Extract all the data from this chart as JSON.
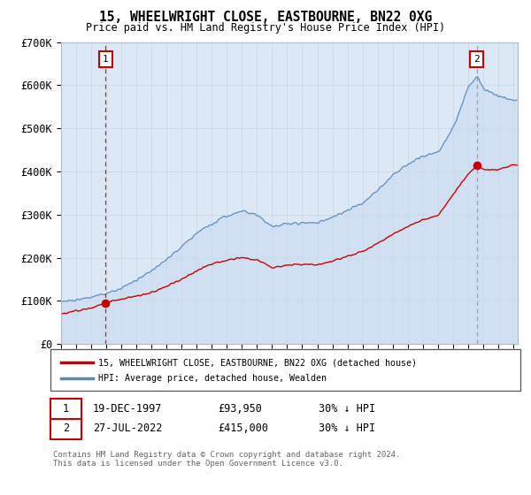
{
  "title": "15, WHEELWRIGHT CLOSE, EASTBOURNE, BN22 0XG",
  "subtitle": "Price paid vs. HM Land Registry's House Price Index (HPI)",
  "ylim": [
    0,
    700000
  ],
  "yticks": [
    0,
    100000,
    200000,
    300000,
    400000,
    500000,
    600000,
    700000
  ],
  "ytick_labels": [
    "£0",
    "£100K",
    "£200K",
    "£300K",
    "£400K",
    "£500K",
    "£600K",
    "£700K"
  ],
  "xlim_start": 1995.0,
  "xlim_end": 2025.3,
  "purchase1_date": 1997.96,
  "purchase1_price": 93950,
  "purchase2_date": 2022.57,
  "purchase2_price": 415000,
  "legend_line1": "15, WHEELWRIGHT CLOSE, EASTBOURNE, BN22 0XG (detached house)",
  "legend_line2": "HPI: Average price, detached house, Wealden",
  "footer": "Contains HM Land Registry data © Crown copyright and database right 2024.\nThis data is licensed under the Open Government Licence v3.0.",
  "price_line_color": "#cc0000",
  "hpi_line_color": "#5588bb",
  "hpi_fill_color": "#c8dcf0",
  "vline1_color": "#cc0000",
  "vline2_color": "#8899bb",
  "dot_color": "#cc0000",
  "marker_box_color": "#cc0000",
  "grid_color": "#c8d4e0",
  "plot_bg": "#dce8f5",
  "hpi_breakpoints": [
    1995,
    1996,
    1997,
    1998,
    1999,
    2000,
    2001,
    2002,
    2003,
    2004,
    2005,
    2006,
    2007,
    2008,
    2009,
    2010,
    2011,
    2012,
    2013,
    2014,
    2015,
    2016,
    2017,
    2018,
    2019,
    2020,
    2021,
    2022,
    2022.6,
    2023,
    2024,
    2025
  ],
  "hpi_values": [
    98000,
    103000,
    108000,
    118000,
    130000,
    148000,
    168000,
    195000,
    225000,
    255000,
    278000,
    295000,
    305000,
    295000,
    268000,
    275000,
    278000,
    278000,
    290000,
    308000,
    325000,
    355000,
    390000,
    415000,
    435000,
    445000,
    500000,
    595000,
    620000,
    590000,
    572000,
    565000
  ],
  "prop_breakpoints": [
    1995,
    1997,
    1997.96,
    1999,
    2001,
    2003,
    2004,
    2005,
    2006,
    2007,
    2008,
    2009,
    2010,
    2011,
    2012,
    2013,
    2014,
    2015,
    2016,
    2017,
    2018,
    2019,
    2020,
    2021,
    2022,
    2022.57,
    2023,
    2024,
    2025
  ],
  "prop_values": [
    70000,
    82000,
    93950,
    104000,
    120000,
    152000,
    172000,
    187000,
    195000,
    202000,
    195000,
    178000,
    183000,
    185000,
    184000,
    192000,
    205000,
    215000,
    235000,
    255000,
    275000,
    290000,
    300000,
    350000,
    395000,
    415000,
    405000,
    405000,
    415000
  ]
}
